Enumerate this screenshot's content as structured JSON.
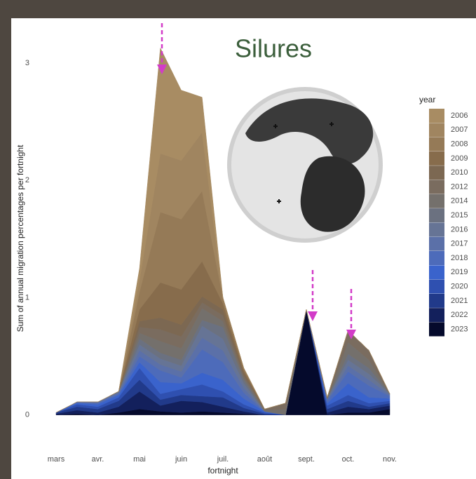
{
  "chart_data": {
    "type": "stacked-area",
    "title": "Silures",
    "ylabel": "Sum of annual migration percentages per fortnight",
    "xlabel": "fortnight",
    "legend_title": "year",
    "categories": [
      "mars",
      null,
      "avr.",
      null,
      "mai",
      null,
      "juin",
      null,
      "juil.",
      null,
      "août",
      null,
      "sept.",
      null,
      "oct.",
      null,
      "nov."
    ],
    "ylim": [
      -0.14,
      3.3
    ],
    "yticks": [
      0,
      1,
      2,
      3
    ],
    "series": [
      {
        "name": "2006",
        "color": "#a88c63",
        "values": [
          0,
          0,
          0,
          0,
          0.1,
          0.9,
          0.6,
          0.3,
          0,
          0,
          0,
          0,
          0,
          0,
          0,
          0,
          0
        ]
      },
      {
        "name": "2007",
        "color": "#a08560",
        "values": [
          0,
          0,
          0,
          0,
          0.1,
          0.5,
          0.5,
          0.5,
          0,
          0,
          0,
          0,
          0,
          0,
          0,
          0,
          0
        ]
      },
      {
        "name": "2008",
        "color": "#957a57",
        "values": [
          0,
          0,
          0,
          0,
          0.15,
          0.6,
          0.6,
          0.6,
          0.05,
          0.02,
          0,
          0,
          0,
          0,
          0,
          0,
          0
        ]
      },
      {
        "name": "2009",
        "color": "#876c4c",
        "values": [
          0,
          0,
          0,
          0,
          0.1,
          0.3,
          0.3,
          0.3,
          0.05,
          0.02,
          0,
          0,
          0,
          0,
          0,
          0,
          0
        ]
      },
      {
        "name": "2010",
        "color": "#7c6852",
        "values": [
          0,
          0,
          0,
          0,
          0.05,
          0.1,
          0.1,
          0.05,
          0.05,
          0.02,
          0,
          0,
          0,
          0,
          0,
          0,
          0
        ]
      },
      {
        "name": "2012",
        "color": "#7a6c5f",
        "values": [
          0,
          0,
          0,
          0,
          0.05,
          0.1,
          0.1,
          0.05,
          0.05,
          0.02,
          0.01,
          0.05,
          0,
          0.01,
          0.1,
          0.08,
          0
        ]
      },
      {
        "name": "2014",
        "color": "#74706c",
        "values": [
          0,
          0,
          0,
          0,
          0.05,
          0.1,
          0.1,
          0.1,
          0.05,
          0.02,
          0.01,
          0.05,
          0,
          0,
          0.1,
          0.07,
          0
        ]
      },
      {
        "name": "2015",
        "color": "#6b7180",
        "values": [
          0,
          0,
          0,
          0,
          0.05,
          0.05,
          0.05,
          0.05,
          0.1,
          0.03,
          0,
          0,
          0,
          0,
          0.05,
          0.05,
          0
        ]
      },
      {
        "name": "2016",
        "color": "#667495",
        "values": [
          0,
          0,
          0,
          0.01,
          0.05,
          0.05,
          0.05,
          0.1,
          0.1,
          0.04,
          0,
          0,
          0,
          0.01,
          0.05,
          0.05,
          0.01
        ]
      },
      {
        "name": "2017",
        "color": "#5b70a8",
        "values": [
          0,
          0,
          0.01,
          0.01,
          0.05,
          0.05,
          0.05,
          0.1,
          0.1,
          0.04,
          0,
          0,
          0,
          0.01,
          0.05,
          0.05,
          0.01
        ]
      },
      {
        "name": "2018",
        "color": "#4d6bba",
        "values": [
          0,
          0.01,
          0.01,
          0.01,
          0.05,
          0.1,
          0.05,
          0.2,
          0.15,
          0.05,
          0,
          0,
          0,
          0.02,
          0.1,
          0.1,
          0.02
        ]
      },
      {
        "name": "2019",
        "color": "#3a63cc",
        "values": [
          0,
          0.01,
          0.02,
          0.02,
          0.05,
          0.1,
          0.05,
          0.1,
          0.1,
          0.05,
          0.01,
          0,
          0,
          0.02,
          0.1,
          0.05,
          0.02
        ]
      },
      {
        "name": "2020",
        "color": "#2f50b0",
        "values": [
          0,
          0.02,
          0.02,
          0.03,
          0.1,
          0.05,
          0.05,
          0.1,
          0.05,
          0.03,
          0.01,
          0,
          0,
          0.03,
          0.05,
          0.03,
          0.02
        ]
      },
      {
        "name": "2021",
        "color": "#213a8a",
        "values": [
          0.01,
          0.03,
          0.03,
          0.05,
          0.1,
          0.05,
          0.05,
          0.05,
          0.08,
          0.03,
          0.01,
          0,
          0,
          0.03,
          0.05,
          0.02,
          0.02
        ]
      },
      {
        "name": "2022",
        "color": "#13205c",
        "values": [
          0.01,
          0.03,
          0.02,
          0.05,
          0.15,
          0.05,
          0.1,
          0.08,
          0.05,
          0.02,
          0,
          0,
          0,
          0.02,
          0.05,
          0.03,
          0.03
        ]
      },
      {
        "name": "2023",
        "color": "#050a2c",
        "values": [
          0,
          0.01,
          0,
          0.02,
          0.05,
          0.03,
          0.02,
          0.03,
          0.02,
          0.01,
          0,
          0,
          0.9,
          0,
          0.02,
          0.02,
          0.05
        ]
      }
    ]
  }
}
